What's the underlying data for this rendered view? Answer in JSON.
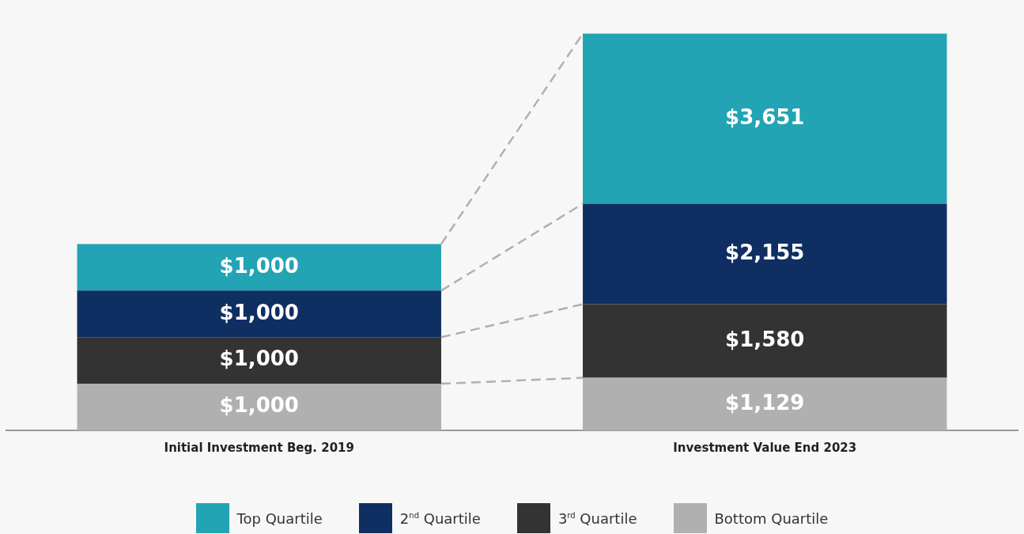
{
  "chart_data": {
    "type": "bar",
    "stacked": true,
    "categories": [
      "Initial Investment Beg. 2019",
      "Investment Value End 2023"
    ],
    "series": [
      {
        "name": "Bottom Quartile",
        "color": "#b0b0b0",
        "values": [
          1000,
          1129
        ],
        "value_labels": [
          "$1,000",
          "$1,129"
        ]
      },
      {
        "name": "3$^{rd}$ Quartile",
        "color": "#333333",
        "values": [
          1000,
          1580
        ],
        "value_labels": [
          "$1,000",
          "$1,580"
        ]
      },
      {
        "name": "2$^{nd}$ Quartile",
        "color": "#0f2f63",
        "values": [
          1000,
          2155
        ],
        "value_labels": [
          "$1,000",
          "$2,155"
        ]
      },
      {
        "name": "Top Quartile",
        "color": "#22a4b4",
        "values": [
          1000,
          3651
        ],
        "value_labels": [
          "$1,000",
          "$3,651"
        ]
      }
    ],
    "legend": "bottom",
    "grid": false
  }
}
